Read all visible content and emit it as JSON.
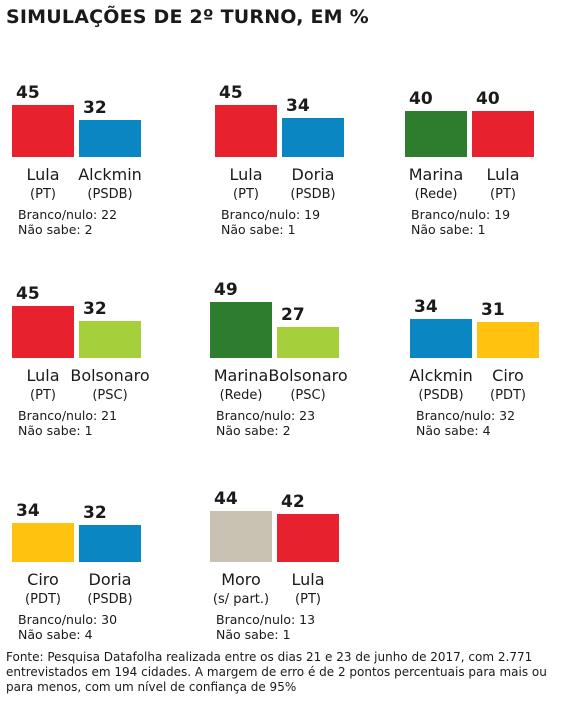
{
  "title": "SIMULAÇÕES DE 2º TURNO, EM %",
  "colors": {
    "PT": "#e8212e",
    "PSDB": "#0a86c2",
    "Rede": "#2e7d2e",
    "PSC": "#a6cf3c",
    "PDT": "#ffc20e",
    "s/ part.": "#c9c1b2"
  },
  "chart_data": [
    {
      "type": "bar",
      "categories": [
        "Lula",
        "Alckmin"
      ],
      "parties": [
        "(PT)",
        "(PSDB)"
      ],
      "values": [
        45,
        32
      ],
      "branco_nulo": "Branco/nulo: 22",
      "nao_sabe": "Não sabe: 2"
    },
    {
      "type": "bar",
      "categories": [
        "Lula",
        "Doria"
      ],
      "parties": [
        "(PT)",
        "(PSDB)"
      ],
      "values": [
        45,
        34
      ],
      "branco_nulo": "Branco/nulo: 19",
      "nao_sabe": "Não sabe: 1"
    },
    {
      "type": "bar",
      "categories": [
        "Marina",
        "Lula"
      ],
      "parties": [
        "(Rede)",
        "(PT)"
      ],
      "values": [
        40,
        40
      ],
      "branco_nulo": "Branco/nulo: 19",
      "nao_sabe": "Não sabe: 1"
    },
    {
      "type": "bar",
      "categories": [
        "Lula",
        "Bolsonaro"
      ],
      "parties": [
        "(PT)",
        "(PSC)"
      ],
      "values": [
        45,
        32
      ],
      "branco_nulo": "Branco/nulo: 21",
      "nao_sabe": "Não sabe: 1"
    },
    {
      "type": "bar",
      "categories": [
        "Marina",
        "Bolsonaro"
      ],
      "parties": [
        "(Rede)",
        "(PSC)"
      ],
      "values": [
        49,
        27
      ],
      "branco_nulo": "Branco/nulo: 23",
      "nao_sabe": "Não sabe: 2"
    },
    {
      "type": "bar",
      "categories": [
        "Alckmin",
        "Ciro"
      ],
      "parties": [
        "(PSDB)",
        "(PDT)"
      ],
      "values": [
        34,
        31
      ],
      "branco_nulo": "Branco/nulo: 32",
      "nao_sabe": "Não sabe: 4"
    },
    {
      "type": "bar",
      "categories": [
        "Ciro",
        "Doria"
      ],
      "parties": [
        "(PDT)",
        "(PSDB)"
      ],
      "values": [
        34,
        32
      ],
      "branco_nulo": "Branco/nulo: 30",
      "nao_sabe": "Não sabe: 4"
    },
    {
      "type": "bar",
      "categories": [
        "Moro",
        "Lula"
      ],
      "parties": [
        "(s/ part.)",
        "(PT)"
      ],
      "values": [
        44,
        42
      ],
      "branco_nulo": "Branco/nulo: 13",
      "nao_sabe": "Não sabe: 1"
    }
  ],
  "source": "Fonte: Pesquisa Datafolha realizada entre os dias 21 e 23 de junho de 2017, com 2.771 entrevistados em 194 cidades. A margem de erro é de 2 pontos percentuais para mais ou para menos, com um nível de confiança de 95%"
}
